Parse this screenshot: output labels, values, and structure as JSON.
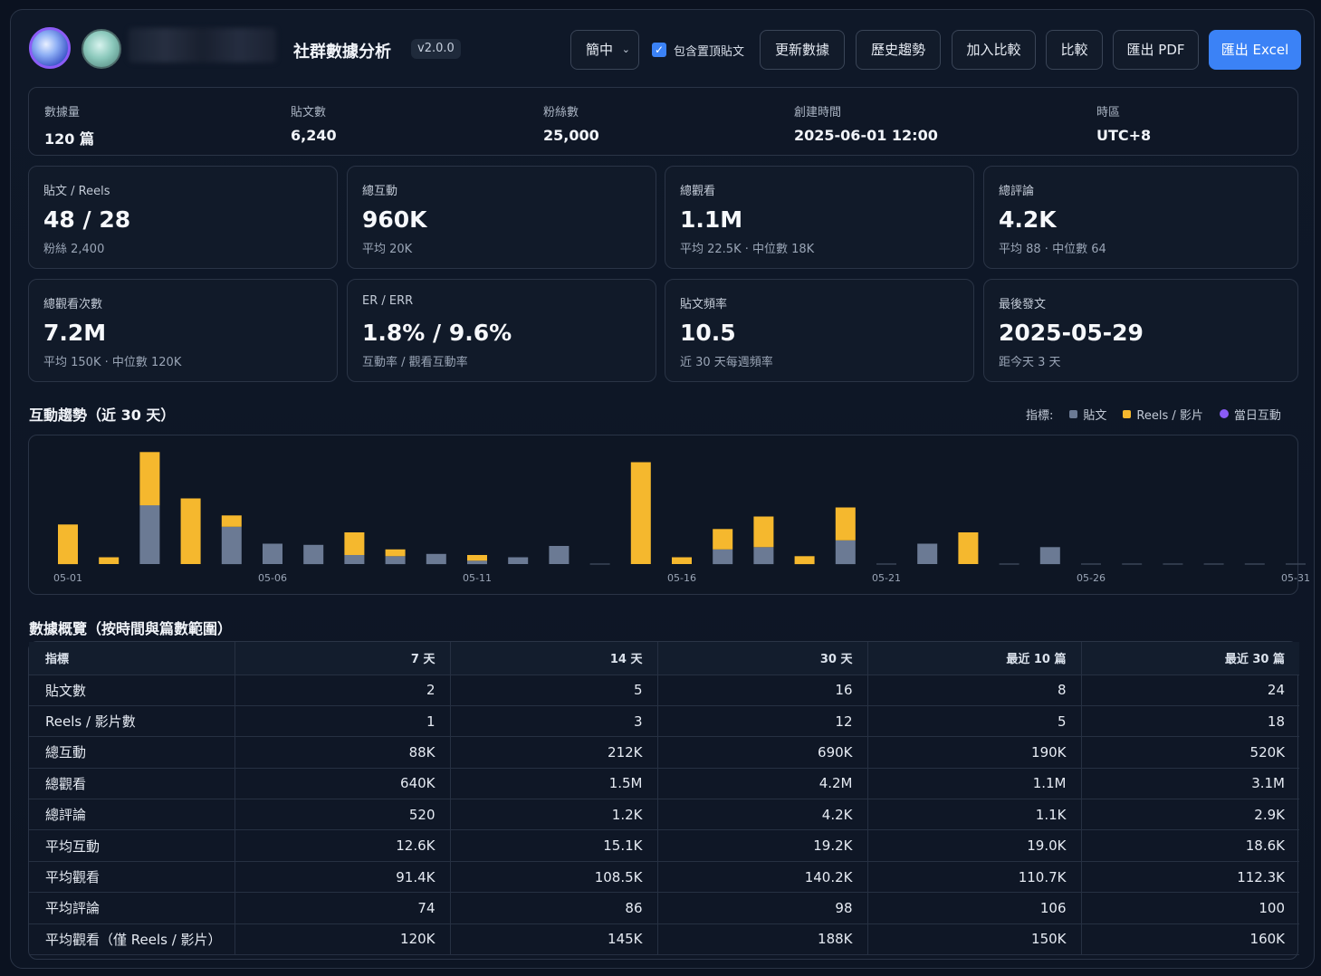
{
  "header": {
    "title": "社群數據分析",
    "version": "v2.0.0",
    "language": "簡中",
    "include_pinned_label": "包含置頂貼文",
    "include_pinned_checked": true,
    "buttons": {
      "refresh": "更新數據",
      "history": "歷史趨勢",
      "add_compare": "加入比較",
      "compare": "比較",
      "export_pdf": "匯出 PDF",
      "export_excel": "匯出 Excel"
    }
  },
  "info": {
    "data_count_label": "數據量",
    "data_count": "120 篇",
    "posts_label": "貼文數",
    "posts": "6,240",
    "followers_label": "粉絲數",
    "followers": "25,000",
    "created_label": "創建時間",
    "created": "2025-06-01 12:00",
    "timezone_label": "時區",
    "timezone": "UTC+8"
  },
  "cards": [
    {
      "label": "貼文 / Reels",
      "value": "48 / 28",
      "sub": "粉絲 2,400"
    },
    {
      "label": "總互動",
      "value": "960K",
      "sub": "平均 20K"
    },
    {
      "label": "總觀看",
      "value": "1.1M",
      "sub": "平均 22.5K · 中位數 18K"
    },
    {
      "label": "總評論",
      "value": "4.2K",
      "sub": "平均 88 · 中位數 64"
    },
    {
      "label": "總觀看次數",
      "value": "7.2M",
      "sub": "平均 150K · 中位數 120K"
    },
    {
      "label": "ER / ERR",
      "value": "1.8% / 9.6%",
      "sub": "互動率 / 觀看互動率"
    },
    {
      "label": "貼文頻率",
      "value": "10.5",
      "sub": "近 30 天每週頻率"
    },
    {
      "label": "最後發文",
      "value": "2025-05-29",
      "sub": "距今天 3 天"
    }
  ],
  "trend": {
    "title": "互動趨勢（近 30 天）",
    "legend_label": "指標:",
    "legend": [
      {
        "name": "貼文",
        "color": "#6b7a94"
      },
      {
        "name": "Reels / 影片",
        "color": "#f5b82e"
      },
      {
        "name": "當日互動",
        "color": "#8b5cf6"
      }
    ]
  },
  "chart_data": {
    "type": "bar",
    "stacked": true,
    "categories": [
      "05-01",
      "05-02",
      "05-03",
      "05-04",
      "05-05",
      "05-06",
      "05-07",
      "05-08",
      "05-09",
      "05-10",
      "05-11",
      "05-12",
      "05-13",
      "05-14",
      "05-15",
      "05-16",
      "05-17",
      "05-18",
      "05-19",
      "05-20",
      "05-21",
      "05-22",
      "05-23",
      "05-24",
      "05-25",
      "05-26",
      "05-27",
      "05-28",
      "05-29",
      "05-30",
      "05-31"
    ],
    "tick_labels": [
      "05-01",
      "05-06",
      "05-11",
      "05-16",
      "05-21",
      "05-26",
      "05-31"
    ],
    "series": [
      {
        "name": "貼文",
        "values": [
          0,
          0,
          52,
          0,
          33,
          18,
          17,
          8,
          7,
          9,
          3,
          6,
          16,
          0,
          0,
          0,
          13,
          15,
          0,
          21,
          0,
          18,
          0,
          0,
          15,
          0,
          0,
          0,
          0,
          0,
          0
        ]
      },
      {
        "name": "Reels / 影片",
        "values": [
          35,
          6,
          47,
          58,
          10,
          0,
          0,
          20,
          6,
          0,
          5,
          0,
          0,
          0,
          90,
          6,
          18,
          27,
          7,
          29,
          0,
          0,
          28,
          0,
          0,
          0,
          0,
          0,
          0,
          0,
          0
        ]
      }
    ],
    "grid": false,
    "legend_position": "top-right"
  },
  "overview": {
    "title": "數據概覽（按時間與篇數範圍）",
    "columns": [
      "指標",
      "7 天",
      "14 天",
      "30 天",
      "最近 10 篇",
      "最近 30 篇"
    ],
    "rows": [
      [
        "貼文數",
        "2",
        "5",
        "16",
        "8",
        "24"
      ],
      [
        "Reels / 影片數",
        "1",
        "3",
        "12",
        "5",
        "18"
      ],
      [
        "總互動",
        "88K",
        "212K",
        "690K",
        "190K",
        "520K"
      ],
      [
        "總觀看",
        "640K",
        "1.5M",
        "4.2M",
        "1.1M",
        "3.1M"
      ],
      [
        "總評論",
        "520",
        "1.2K",
        "4.2K",
        "1.1K",
        "2.9K"
      ],
      [
        "平均互動",
        "12.6K",
        "15.1K",
        "19.2K",
        "19.0K",
        "18.6K"
      ],
      [
        "平均觀看",
        "91.4K",
        "108.5K",
        "140.2K",
        "110.7K",
        "112.3K"
      ],
      [
        "平均評論",
        "74",
        "86",
        "98",
        "106",
        "100"
      ],
      [
        "平均觀看（僅 Reels / 影片）",
        "120K",
        "145K",
        "188K",
        "150K",
        "160K"
      ]
    ]
  }
}
